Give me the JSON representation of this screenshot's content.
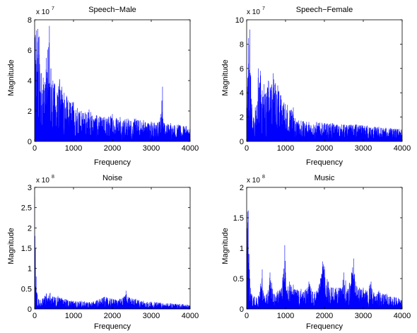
{
  "figure": {
    "panels": [
      {
        "title": "Speech−Male",
        "xlabel": "Frequency",
        "ylabel": "Magnitude",
        "xticks": [
          "0",
          "1000",
          "2000",
          "3000",
          "4000"
        ],
        "yticks": [
          "0",
          "2",
          "4",
          "6",
          "8"
        ],
        "exponent_base": "x 10",
        "exponent_power": "7"
      },
      {
        "title": "Speech−Female",
        "xlabel": "Frequency",
        "ylabel": "Magnitude",
        "xticks": [
          "0",
          "1000",
          "2000",
          "3000",
          "4000"
        ],
        "yticks": [
          "0",
          "2",
          "4",
          "6",
          "8",
          "10"
        ],
        "exponent_base": "x 10",
        "exponent_power": "7"
      },
      {
        "title": "Noise",
        "xlabel": "Frequency",
        "ylabel": "Magnitude",
        "xticks": [
          "0",
          "1000",
          "2000",
          "3000",
          "4000"
        ],
        "yticks": [
          "0",
          "0.5",
          "1",
          "1.5",
          "2",
          "2.5",
          "3"
        ],
        "exponent_base": "x 10",
        "exponent_power": "8"
      },
      {
        "title": "Music",
        "xlabel": "Frequency",
        "ylabel": "Magnitude",
        "xticks": [
          "0",
          "1000",
          "2000",
          "3000",
          "4000"
        ],
        "yticks": [
          "0",
          "0.5",
          "1",
          "1.5",
          "2"
        ],
        "exponent_base": "x 10",
        "exponent_power": "8"
      }
    ]
  },
  "chart_data": [
    {
      "type": "line",
      "title": "Speech−Male",
      "xlabel": "Frequency",
      "ylabel": "Magnitude",
      "xlim": [
        0,
        4000
      ],
      "ylim": [
        0,
        8
      ],
      "y_scale_factor": "x 10^7",
      "color": "#0000ff",
      "envelope": {
        "x": [
          0,
          20,
          50,
          80,
          120,
          170,
          220,
          260,
          300,
          350,
          380,
          420,
          470,
          520,
          580,
          640,
          700,
          760,
          820,
          900,
          1000,
          1100,
          1200,
          1300,
          1400,
          1600,
          1800,
          2000,
          2200,
          2400,
          2600,
          2800,
          3000,
          3200,
          3250,
          3290,
          3300,
          3340,
          3500,
          3700,
          3900,
          4000
        ],
        "y": [
          6.8,
          7.0,
          7.3,
          7.4,
          6.9,
          4.5,
          4.2,
          3.5,
          5.5,
          6.2,
          7.6,
          4.8,
          4.0,
          3.8,
          3.2,
          4.1,
          3.6,
          3.2,
          3.0,
          2.6,
          2.6,
          2.2,
          2.0,
          1.9,
          2.1,
          1.7,
          1.6,
          1.8,
          1.6,
          1.5,
          1.5,
          1.4,
          1.3,
          1.3,
          1.8,
          3.6,
          1.5,
          1.2,
          1.2,
          1.1,
          1.0,
          0.9
        ]
      }
    },
    {
      "type": "line",
      "title": "Speech−Female",
      "xlabel": "Frequency",
      "ylabel": "Magnitude",
      "xlim": [
        0,
        4000
      ],
      "ylim": [
        0,
        10
      ],
      "y_scale_factor": "x 10^7",
      "color": "#0000ff",
      "envelope": {
        "x": [
          0,
          20,
          50,
          80,
          120,
          170,
          220,
          260,
          300,
          350,
          400,
          450,
          500,
          560,
          620,
          680,
          740,
          800,
          880,
          960,
          1050,
          1150,
          1200,
          1250,
          1400,
          1600,
          1800,
          2000,
          2200,
          2500,
          2800,
          3100,
          3400,
          3700,
          4000
        ],
        "y": [
          3.0,
          4.5,
          8.5,
          9.2,
          3.5,
          2.0,
          2.8,
          3.0,
          6.0,
          5.8,
          4.2,
          4.7,
          4.0,
          5.0,
          4.5,
          5.6,
          4.8,
          4.6,
          3.8,
          3.2,
          3.0,
          2.6,
          2.8,
          1.9,
          1.7,
          1.6,
          1.6,
          1.5,
          1.5,
          1.4,
          1.4,
          1.3,
          1.2,
          1.1,
          1.0
        ]
      }
    },
    {
      "type": "line",
      "title": "Noise",
      "xlabel": "Frequency",
      "ylabel": "Magnitude",
      "xlim": [
        0,
        4000
      ],
      "ylim": [
        0,
        3
      ],
      "y_scale_factor": "x 10^8",
      "color": "#0000ff",
      "envelope": {
        "x": [
          0,
          10,
          20,
          40,
          60,
          100,
          150,
          200,
          300,
          400,
          500,
          600,
          700,
          800,
          1000,
          1200,
          1400,
          1600,
          1800,
          2000,
          2200,
          2300,
          2350,
          2400,
          2600,
          2800,
          3000,
          3200,
          3500,
          3800,
          4000
        ],
        "y": [
          2.75,
          1.8,
          1.5,
          0.8,
          0.4,
          0.25,
          0.22,
          0.25,
          0.38,
          0.4,
          0.3,
          0.32,
          0.27,
          0.24,
          0.2,
          0.2,
          0.17,
          0.22,
          0.3,
          0.25,
          0.25,
          0.3,
          0.45,
          0.3,
          0.25,
          0.2,
          0.18,
          0.16,
          0.14,
          0.12,
          0.1
        ]
      }
    },
    {
      "type": "line",
      "title": "Music",
      "xlabel": "Frequency",
      "ylabel": "Magnitude",
      "xlim": [
        0,
        4000
      ],
      "ylim": [
        0,
        2
      ],
      "y_scale_factor": "x 10^8",
      "color": "#0000ff",
      "envelope": {
        "x": [
          0,
          20,
          40,
          60,
          80,
          120,
          200,
          300,
          400,
          420,
          460,
          520,
          600,
          700,
          800,
          900,
          980,
          1000,
          1020,
          1100,
          1200,
          1300,
          1400,
          1500,
          1600,
          1700,
          1800,
          1900,
          1950,
          2000,
          2100,
          2200,
          2300,
          2400,
          2500,
          2600,
          2700,
          2750,
          2800,
          2900,
          3000,
          3100,
          3200,
          3300,
          3400,
          3500,
          3600,
          3700,
          3800,
          3900,
          4000
        ],
        "y": [
          1.0,
          1.6,
          1.62,
          0.9,
          0.5,
          0.25,
          0.2,
          0.22,
          0.65,
          0.3,
          0.22,
          0.25,
          0.6,
          0.25,
          0.3,
          0.35,
          1.05,
          0.6,
          0.3,
          0.45,
          0.4,
          0.32,
          0.33,
          0.3,
          0.45,
          0.28,
          0.3,
          0.5,
          0.78,
          0.7,
          0.45,
          0.35,
          0.35,
          0.35,
          0.6,
          0.33,
          0.6,
          0.83,
          0.45,
          0.35,
          0.35,
          0.3,
          0.45,
          0.2,
          0.3,
          0.25,
          0.25,
          0.2,
          0.2,
          0.18,
          0.15
        ]
      }
    }
  ]
}
